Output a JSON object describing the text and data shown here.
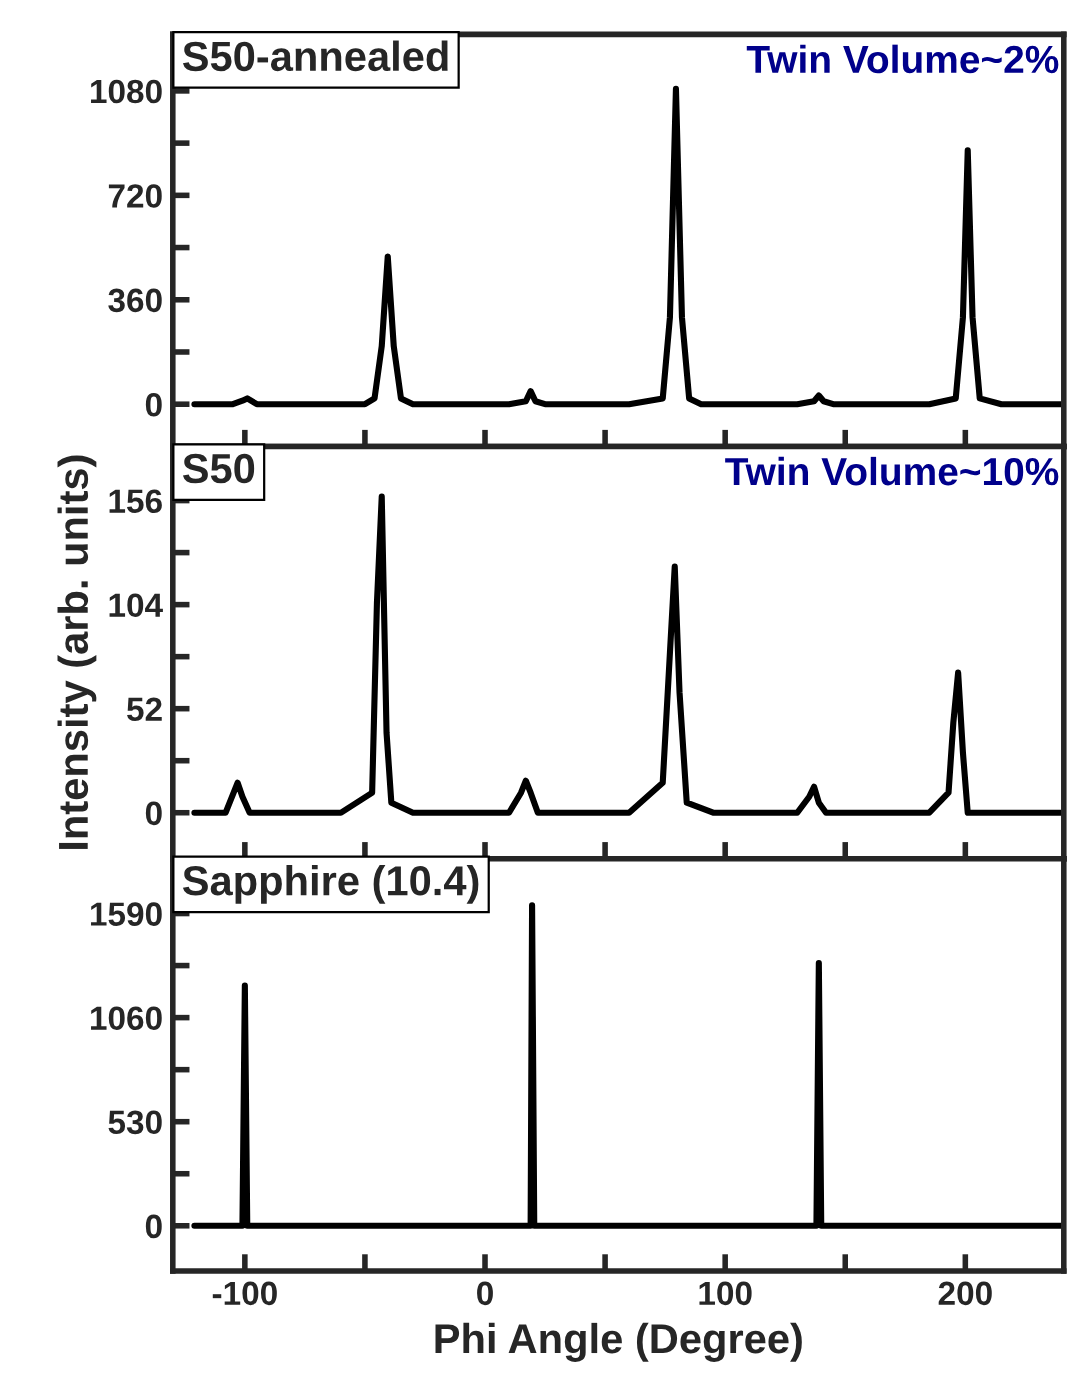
{
  "chart_data": [
    {
      "type": "line",
      "annotations": [
        "S50-annealed",
        "Twin Volume~2%"
      ],
      "xlim": [
        -130,
        241
      ],
      "xticks": [
        -100,
        {
          "value": -50,
          "label": null
        },
        0,
        {
          "value": 50,
          "label": null
        },
        100,
        {
          "value": 150,
          "label": null
        },
        200
      ],
      "ylim": [
        -146,
        1275
      ],
      "yticks": [
        0,
        {
          "value": 180,
          "label": null
        },
        360,
        {
          "value": 540,
          "label": null
        },
        720,
        {
          "value": 900,
          "label": null
        },
        1080
      ],
      "tick_labels": "y",
      "grid": false,
      "legend": false,
      "series": [
        {
          "color": "#000000",
          "x": [
            -121,
            -105,
            -101,
            -99,
            -95,
            -50,
            -46,
            -43,
            -40.5,
            -38,
            -35,
            -30,
            10,
            17,
            19,
            21,
            25,
            60,
            74,
            77,
            79.5,
            82,
            85,
            90,
            130,
            137,
            139,
            141,
            145,
            185,
            196,
            199,
            201,
            203,
            206,
            215,
            240
          ],
          "values": [
            0,
            0,
            12,
            20,
            0,
            0,
            20,
            200,
            509,
            200,
            20,
            0,
            0,
            10,
            45,
            10,
            0,
            0,
            20,
            300,
            1087,
            300,
            20,
            0,
            0,
            10,
            30,
            10,
            0,
            0,
            20,
            300,
            875,
            300,
            20,
            0,
            0
          ]
        }
      ]
    },
    {
      "type": "line",
      "annotations": [
        "S50",
        "Twin Volume~10%"
      ],
      "ylabel": "Intensity (arb. units)",
      "xlim": [
        -130,
        241
      ],
      "xticks": [
        -100,
        {
          "value": -50,
          "label": null
        },
        0,
        {
          "value": 50,
          "label": null
        },
        100,
        {
          "value": 150,
          "label": null
        },
        200
      ],
      "ylim": [
        -23,
        183
      ],
      "yticks": [
        0,
        {
          "value": 26,
          "label": null
        },
        52,
        {
          "value": 78,
          "label": null
        },
        104,
        {
          "value": 130,
          "label": null
        },
        156
      ],
      "tick_labels": "y",
      "grid": false,
      "legend": false,
      "series": [
        {
          "color": "#000000",
          "x": [
            -121,
            -108,
            -104,
            -103,
            -101,
            -98,
            -60,
            -47,
            -45,
            -43,
            -41,
            -39,
            -30,
            10,
            15,
            17,
            19,
            22,
            60,
            74,
            77,
            79,
            81,
            84,
            95,
            130,
            135,
            137,
            139,
            142,
            185,
            193,
            195,
            197,
            199,
            201,
            215,
            240
          ],
          "values": [
            0,
            0,
            12,
            15,
            8,
            0,
            0,
            10,
            105,
            158,
            40,
            5,
            0,
            0,
            10,
            16,
            10,
            0,
            0,
            15,
            80,
            123,
            60,
            5,
            0,
            0,
            8,
            13,
            5,
            0,
            0,
            10,
            45,
            70,
            30,
            0,
            0,
            0
          ]
        }
      ]
    },
    {
      "type": "line",
      "annotations": [
        "Sapphire (10.4)"
      ],
      "xlabel": "Phi Angle (Degree)",
      "xlim": [
        -130,
        241
      ],
      "xticks": [
        -100,
        {
          "value": -50,
          "label": null
        },
        0,
        {
          "value": 50,
          "label": null
        },
        100,
        {
          "value": 150,
          "label": null
        },
        200
      ],
      "ylim": [
        -230,
        1869
      ],
      "yticks": [
        0,
        {
          "value": 265,
          "label": null
        },
        530,
        {
          "value": 795,
          "label": null
        },
        1060,
        {
          "value": 1325,
          "label": null
        },
        1590
      ],
      "grid": false,
      "legend": false,
      "series": [
        {
          "color": "#000000",
          "x": [
            -121,
            -101,
            -100,
            -99,
            19,
            19.6,
            20.5,
            138,
            139,
            140,
            240
          ],
          "values": [
            0,
            0,
            1223,
            0,
            0,
            1632,
            0,
            0,
            1338,
            0,
            0
          ]
        }
      ]
    }
  ]
}
